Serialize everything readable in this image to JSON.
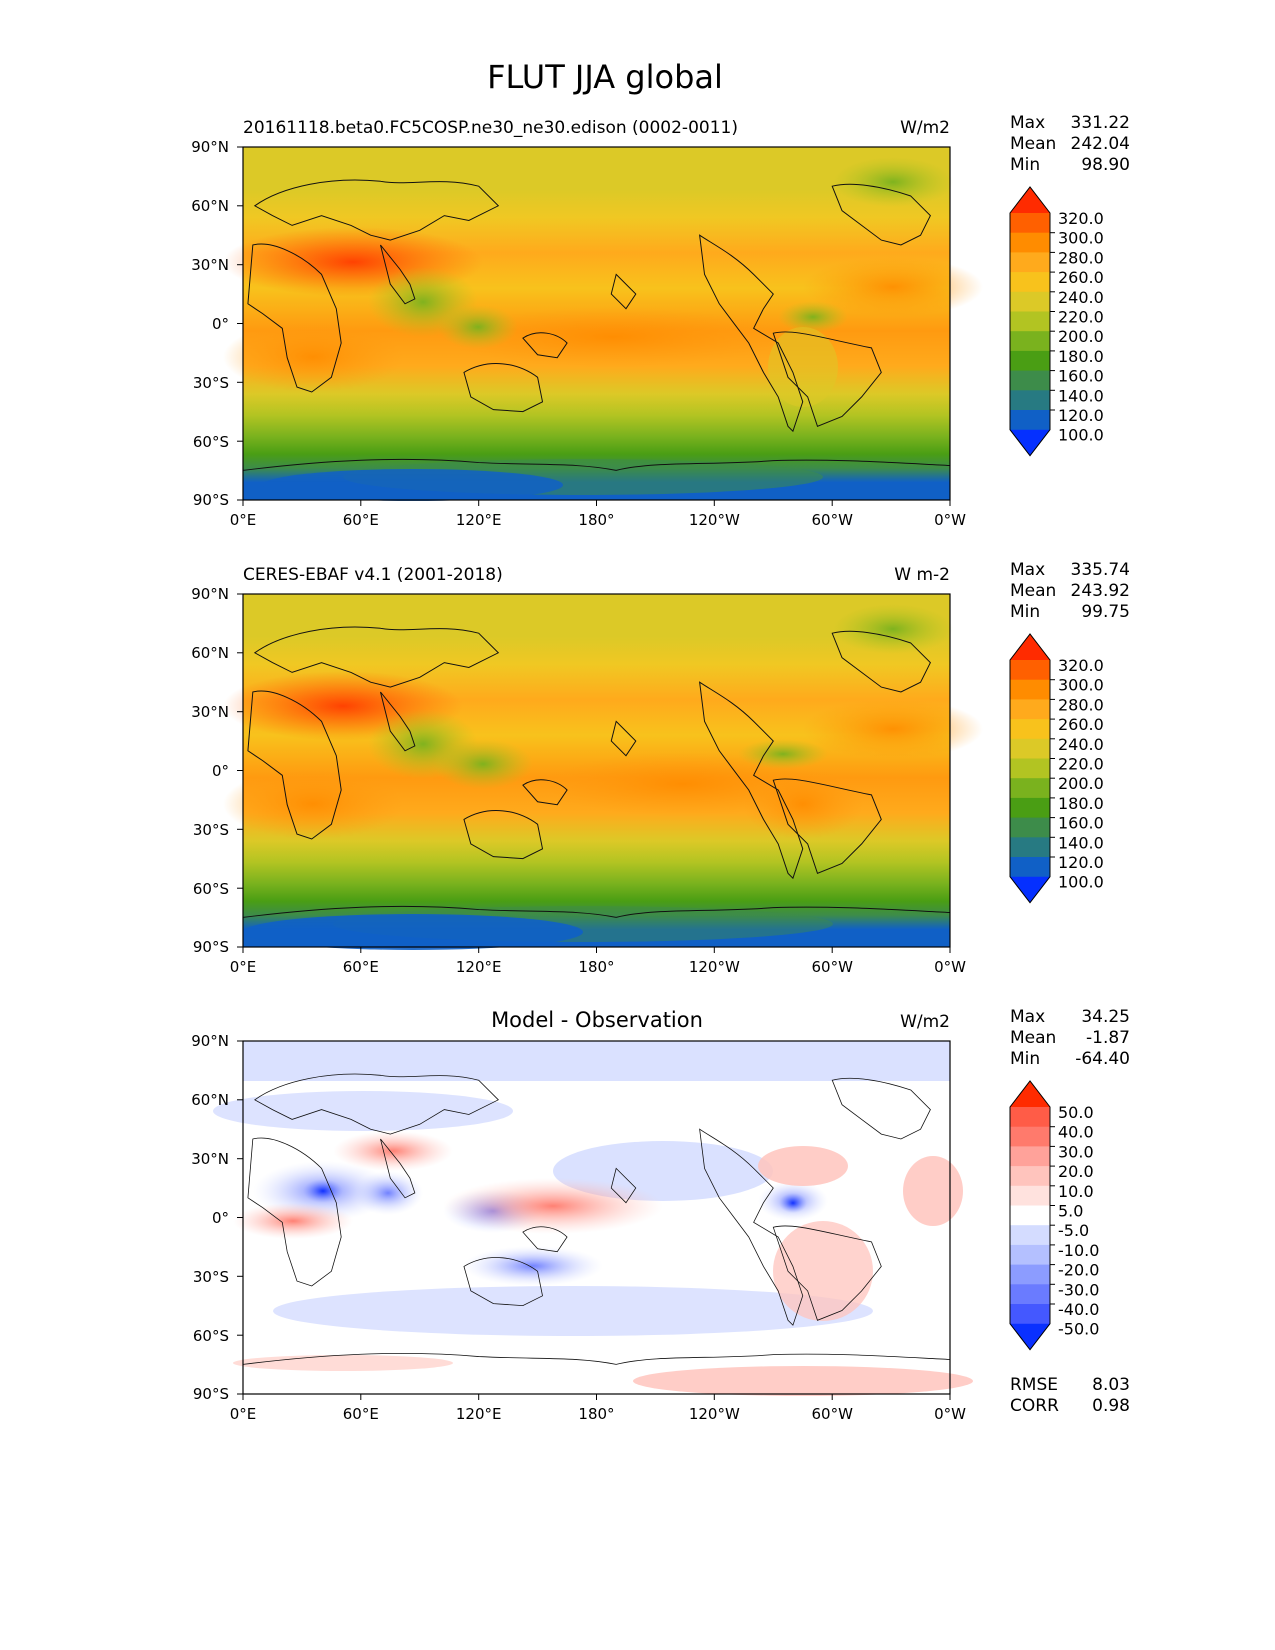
{
  "title": "FLUT JJA global",
  "chart_data": [
    {
      "type": "heatmap",
      "panel_title": "",
      "left_title": "20161118.beta0.FC5COSP.ne30_ne30.edison (0002-0011)",
      "units": "W/m2",
      "stats": [
        {
          "label": "Max",
          "value": "331.22"
        },
        {
          "label": "Mean",
          "value": "242.04"
        },
        {
          "label": "Min",
          "value": "98.90"
        }
      ],
      "colorbar_levels": [
        "320.0",
        "300.0",
        "280.0",
        "260.0",
        "240.0",
        "220.0",
        "200.0",
        "180.0",
        "160.0",
        "140.0",
        "120.0",
        "100.0"
      ],
      "colorbar_colors": [
        "#ff2b00",
        "#ff6000",
        "#ff8c00",
        "#ffaa1c",
        "#f8c21c",
        "#dcc927",
        "#b2c422",
        "#7ab21e",
        "#4a9e14",
        "#3d8c4a",
        "#277a82",
        "#1060c6",
        "#0530ff"
      ],
      "xlabels": [
        "0°E",
        "60°E",
        "120°E",
        "180°",
        "120°W",
        "60°W",
        "0°W"
      ],
      "ylabels": [
        "90°N",
        "60°N",
        "30°N",
        "0°",
        "30°S",
        "60°S",
        "90°S"
      ],
      "footer_stats": []
    },
    {
      "type": "heatmap",
      "panel_title": "",
      "left_title": "CERES-EBAF v4.1 (2001-2018)",
      "units": "W m-2",
      "stats": [
        {
          "label": "Max",
          "value": "335.74"
        },
        {
          "label": "Mean",
          "value": "243.92"
        },
        {
          "label": "Min",
          "value": "99.75"
        }
      ],
      "colorbar_levels": [
        "320.0",
        "300.0",
        "280.0",
        "260.0",
        "240.0",
        "220.0",
        "200.0",
        "180.0",
        "160.0",
        "140.0",
        "120.0",
        "100.0"
      ],
      "colorbar_colors": [
        "#ff2b00",
        "#ff6000",
        "#ff8c00",
        "#ffaa1c",
        "#f8c21c",
        "#dcc927",
        "#b2c422",
        "#7ab21e",
        "#4a9e14",
        "#3d8c4a",
        "#277a82",
        "#1060c6",
        "#0530ff"
      ],
      "xlabels": [
        "0°E",
        "60°E",
        "120°E",
        "180°",
        "120°W",
        "60°W",
        "0°W"
      ],
      "ylabels": [
        "90°N",
        "60°N",
        "30°N",
        "0°",
        "30°S",
        "60°S",
        "90°S"
      ],
      "footer_stats": []
    },
    {
      "type": "heatmap",
      "panel_title": "Model - Observation",
      "left_title": "",
      "units": "W/m2",
      "stats": [
        {
          "label": "Max",
          "value": "34.25"
        },
        {
          "label": "Mean",
          "value": "-1.87"
        },
        {
          "label": "Min",
          "value": "-64.40"
        }
      ],
      "colorbar_levels": [
        "50.0",
        "40.0",
        "30.0",
        "20.0",
        "10.0",
        "5.0",
        "-5.0",
        "-10.0",
        "-20.0",
        "-30.0",
        "-40.0",
        "-50.0"
      ],
      "colorbar_colors": [
        "#ff2b00",
        "#ff5c47",
        "#ff7a6c",
        "#ffa29a",
        "#ffc4bd",
        "#ffe2de",
        "#ffffff",
        "#d4dcff",
        "#b4c0ff",
        "#8c9cff",
        "#6a7bff",
        "#4458ff",
        "#0a30ff"
      ],
      "xlabels": [
        "0°E",
        "60°E",
        "120°E",
        "180°",
        "120°W",
        "60°W",
        "0°W"
      ],
      "ylabels": [
        "90°N",
        "60°N",
        "30°N",
        "0°",
        "30°S",
        "60°S",
        "90°S"
      ],
      "footer_stats": [
        {
          "label": "RMSE",
          "value": "8.03"
        },
        {
          "label": "CORR",
          "value": "0.98"
        }
      ]
    }
  ]
}
